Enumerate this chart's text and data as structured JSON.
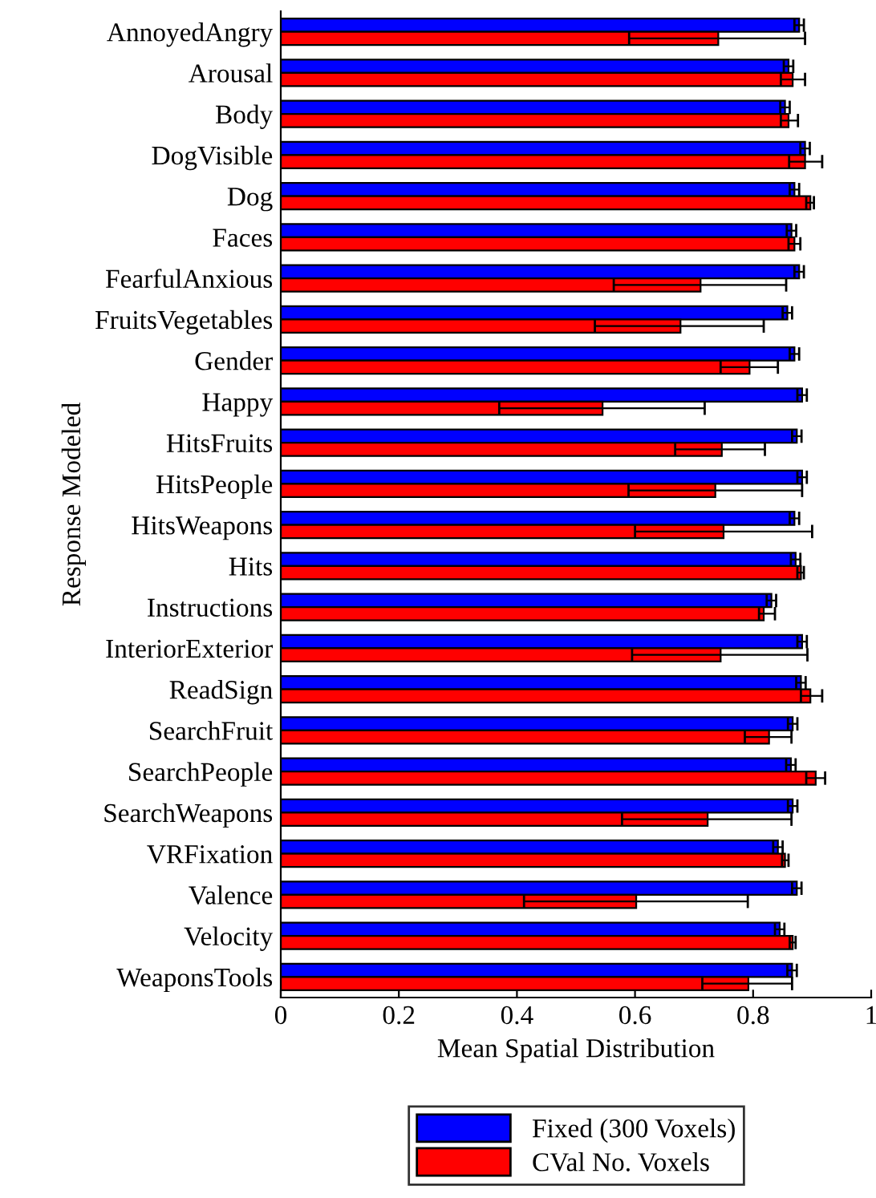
{
  "chart_data": {
    "type": "bar",
    "orientation": "horizontal",
    "xlabel": "Mean Spatial Distribution",
    "ylabel": "Response Modeled",
    "categories": [
      "AnnoyedAngry",
      "Arousal",
      "Body",
      "DogVisible",
      "Dog",
      "Faces",
      "FearfulAnxious",
      "FruitsVegetables",
      "Gender",
      "Happy",
      "HitsFruits",
      "HitsPeople",
      "HitsWeapons",
      "Hits",
      "Instructions",
      "InteriorExterior",
      "ReadSign",
      "SearchFruit",
      "SearchPeople",
      "SearchWeapons",
      "VRFixation",
      "Valence",
      "Velocity",
      "WeaponsTools"
    ],
    "series": [
      {
        "name": "Fixed (300 Voxels)",
        "color": "#0000ff",
        "values": [
          0.878,
          0.86,
          0.854,
          0.888,
          0.87,
          0.865,
          0.878,
          0.858,
          0.87,
          0.883,
          0.874,
          0.883,
          0.87,
          0.872,
          0.831,
          0.883,
          0.881,
          0.867,
          0.864,
          0.867,
          0.842,
          0.874,
          0.845,
          0.866
        ],
        "errors": [
          0.008,
          0.008,
          0.008,
          0.008,
          0.008,
          0.008,
          0.008,
          0.008,
          0.008,
          0.008,
          0.008,
          0.008,
          0.008,
          0.008,
          0.008,
          0.008,
          0.008,
          0.008,
          0.008,
          0.008,
          0.008,
          0.008,
          0.008,
          0.008
        ]
      },
      {
        "name": "CVal No. Voxels",
        "color": "#ff0000",
        "values": [
          0.741,
          0.867,
          0.86,
          0.888,
          0.897,
          0.87,
          0.711,
          0.677,
          0.794,
          0.545,
          0.747,
          0.736,
          0.75,
          0.881,
          0.818,
          0.745,
          0.897,
          0.827,
          0.906,
          0.723,
          0.854,
          0.602,
          0.867,
          0.792
        ],
        "errors": [
          [
            0.59,
            0.888
          ],
          [
            0.847,
            0.888
          ],
          [
            0.847,
            0.876
          ],
          [
            0.861,
            0.917
          ],
          [
            0.89,
            0.903
          ],
          [
            0.86,
            0.88
          ],
          [
            0.564,
            0.856
          ],
          [
            0.532,
            0.818
          ],
          [
            0.745,
            0.842
          ],
          [
            0.37,
            0.718
          ],
          [
            0.668,
            0.82
          ],
          [
            0.589,
            0.883
          ],
          [
            0.6,
            0.9
          ],
          [
            0.875,
            0.886
          ],
          [
            0.81,
            0.837
          ],
          [
            0.595,
            0.892
          ],
          [
            0.881,
            0.917
          ],
          [
            0.786,
            0.865
          ],
          [
            0.89,
            0.922
          ],
          [
            0.578,
            0.865
          ],
          [
            0.849,
            0.86
          ],
          [
            0.412,
            0.791
          ],
          [
            0.862,
            0.872
          ],
          [
            0.714,
            0.866
          ]
        ]
      }
    ],
    "xlim": [
      0,
      1
    ],
    "xticks": [
      0,
      0.2,
      0.4,
      0.6,
      0.8,
      1
    ],
    "legend": "bottom",
    "grid": false
  }
}
